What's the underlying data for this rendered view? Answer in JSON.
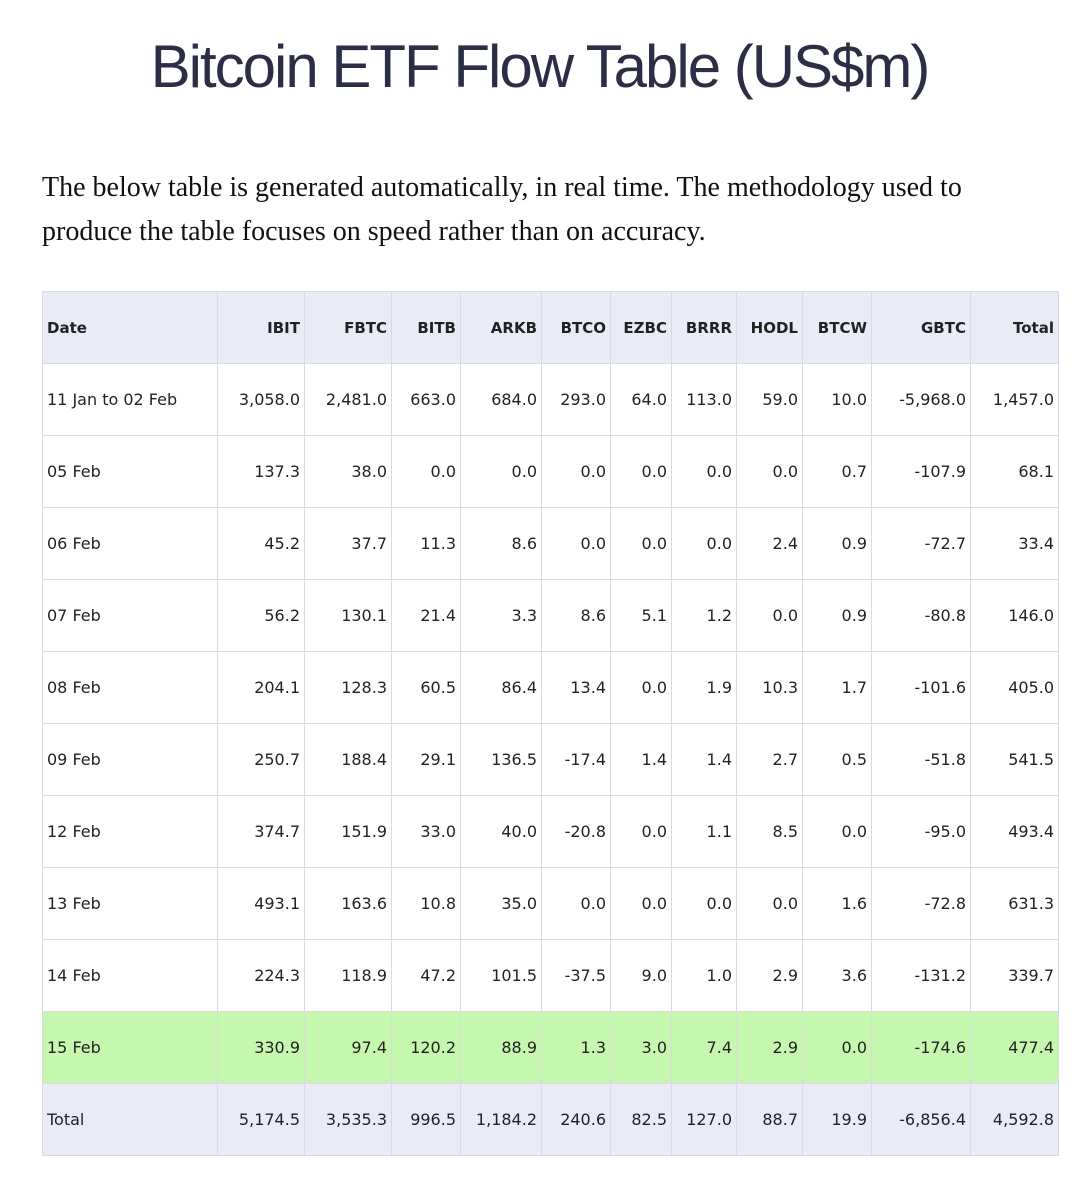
{
  "header": {
    "title": "Bitcoin ETF Flow Table (US$m)"
  },
  "intro": [
    "The below table is generated automatically, in real time. The methodology used to",
    "produce the table focuses on speed rather than on accuracy."
  ],
  "table": {
    "columns": [
      "Date",
      "IBIT",
      "FBTC",
      "BITB",
      "ARKB",
      "BTCO",
      "EZBC",
      "BRRR",
      "HODL",
      "BTCW",
      "GBTC",
      "Total"
    ],
    "rows": [
      [
        "11 Jan to 02 Feb",
        "3,058.0",
        "2,481.0",
        "663.0",
        "684.0",
        "293.0",
        "64.0",
        "113.0",
        "59.0",
        "10.0",
        "-5,968.0",
        "1,457.0"
      ],
      [
        "05 Feb",
        "137.3",
        "38.0",
        "0.0",
        "0.0",
        "0.0",
        "0.0",
        "0.0",
        "0.0",
        "0.7",
        "-107.9",
        "68.1"
      ],
      [
        "06 Feb",
        "45.2",
        "37.7",
        "11.3",
        "8.6",
        "0.0",
        "0.0",
        "0.0",
        "2.4",
        "0.9",
        "-72.7",
        "33.4"
      ],
      [
        "07 Feb",
        "56.2",
        "130.1",
        "21.4",
        "3.3",
        "8.6",
        "5.1",
        "1.2",
        "0.0",
        "0.9",
        "-80.8",
        "146.0"
      ],
      [
        "08 Feb",
        "204.1",
        "128.3",
        "60.5",
        "86.4",
        "13.4",
        "0.0",
        "1.9",
        "10.3",
        "1.7",
        "-101.6",
        "405.0"
      ],
      [
        "09 Feb",
        "250.7",
        "188.4",
        "29.1",
        "136.5",
        "-17.4",
        "1.4",
        "1.4",
        "2.7",
        "0.5",
        "-51.8",
        "541.5"
      ],
      [
        "12 Feb",
        "374.7",
        "151.9",
        "33.0",
        "40.0",
        "-20.8",
        "0.0",
        "1.1",
        "8.5",
        "0.0",
        "-95.0",
        "493.4"
      ],
      [
        "13 Feb",
        "493.1",
        "163.6",
        "10.8",
        "35.0",
        "0.0",
        "0.0",
        "0.0",
        "0.0",
        "1.6",
        "-72.8",
        "631.3"
      ],
      [
        "14 Feb",
        "224.3",
        "118.9",
        "47.2",
        "101.5",
        "-37.5",
        "9.0",
        "1.0",
        "2.9",
        "3.6",
        "-131.2",
        "339.7"
      ],
      [
        "15 Feb",
        "330.9",
        "97.4",
        "120.2",
        "88.9",
        "1.3",
        "3.0",
        "7.4",
        "2.9",
        "0.0",
        "-174.6",
        "477.4"
      ]
    ],
    "total": [
      "Total",
      "5,174.5",
      "3,535.3",
      "996.5",
      "1,184.2",
      "240.6",
      "82.5",
      "127.0",
      "88.7",
      "19.9",
      "-6,856.4",
      "4,592.8"
    ]
  }
}
